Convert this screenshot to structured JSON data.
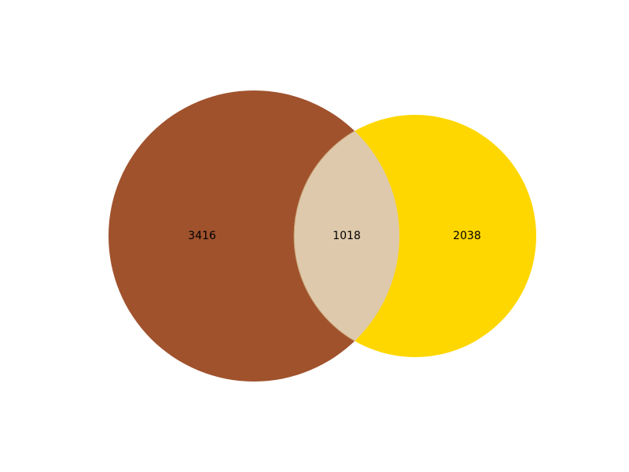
{
  "venn": {
    "sets": [
      {
        "id": "A",
        "only_count": "3416",
        "color": "#a0522d"
      },
      {
        "id": "B",
        "only_count": "2038",
        "color": "#ffd700"
      }
    ],
    "intersection": {
      "count": "1018",
      "color": "#dfc9ac"
    }
  }
}
